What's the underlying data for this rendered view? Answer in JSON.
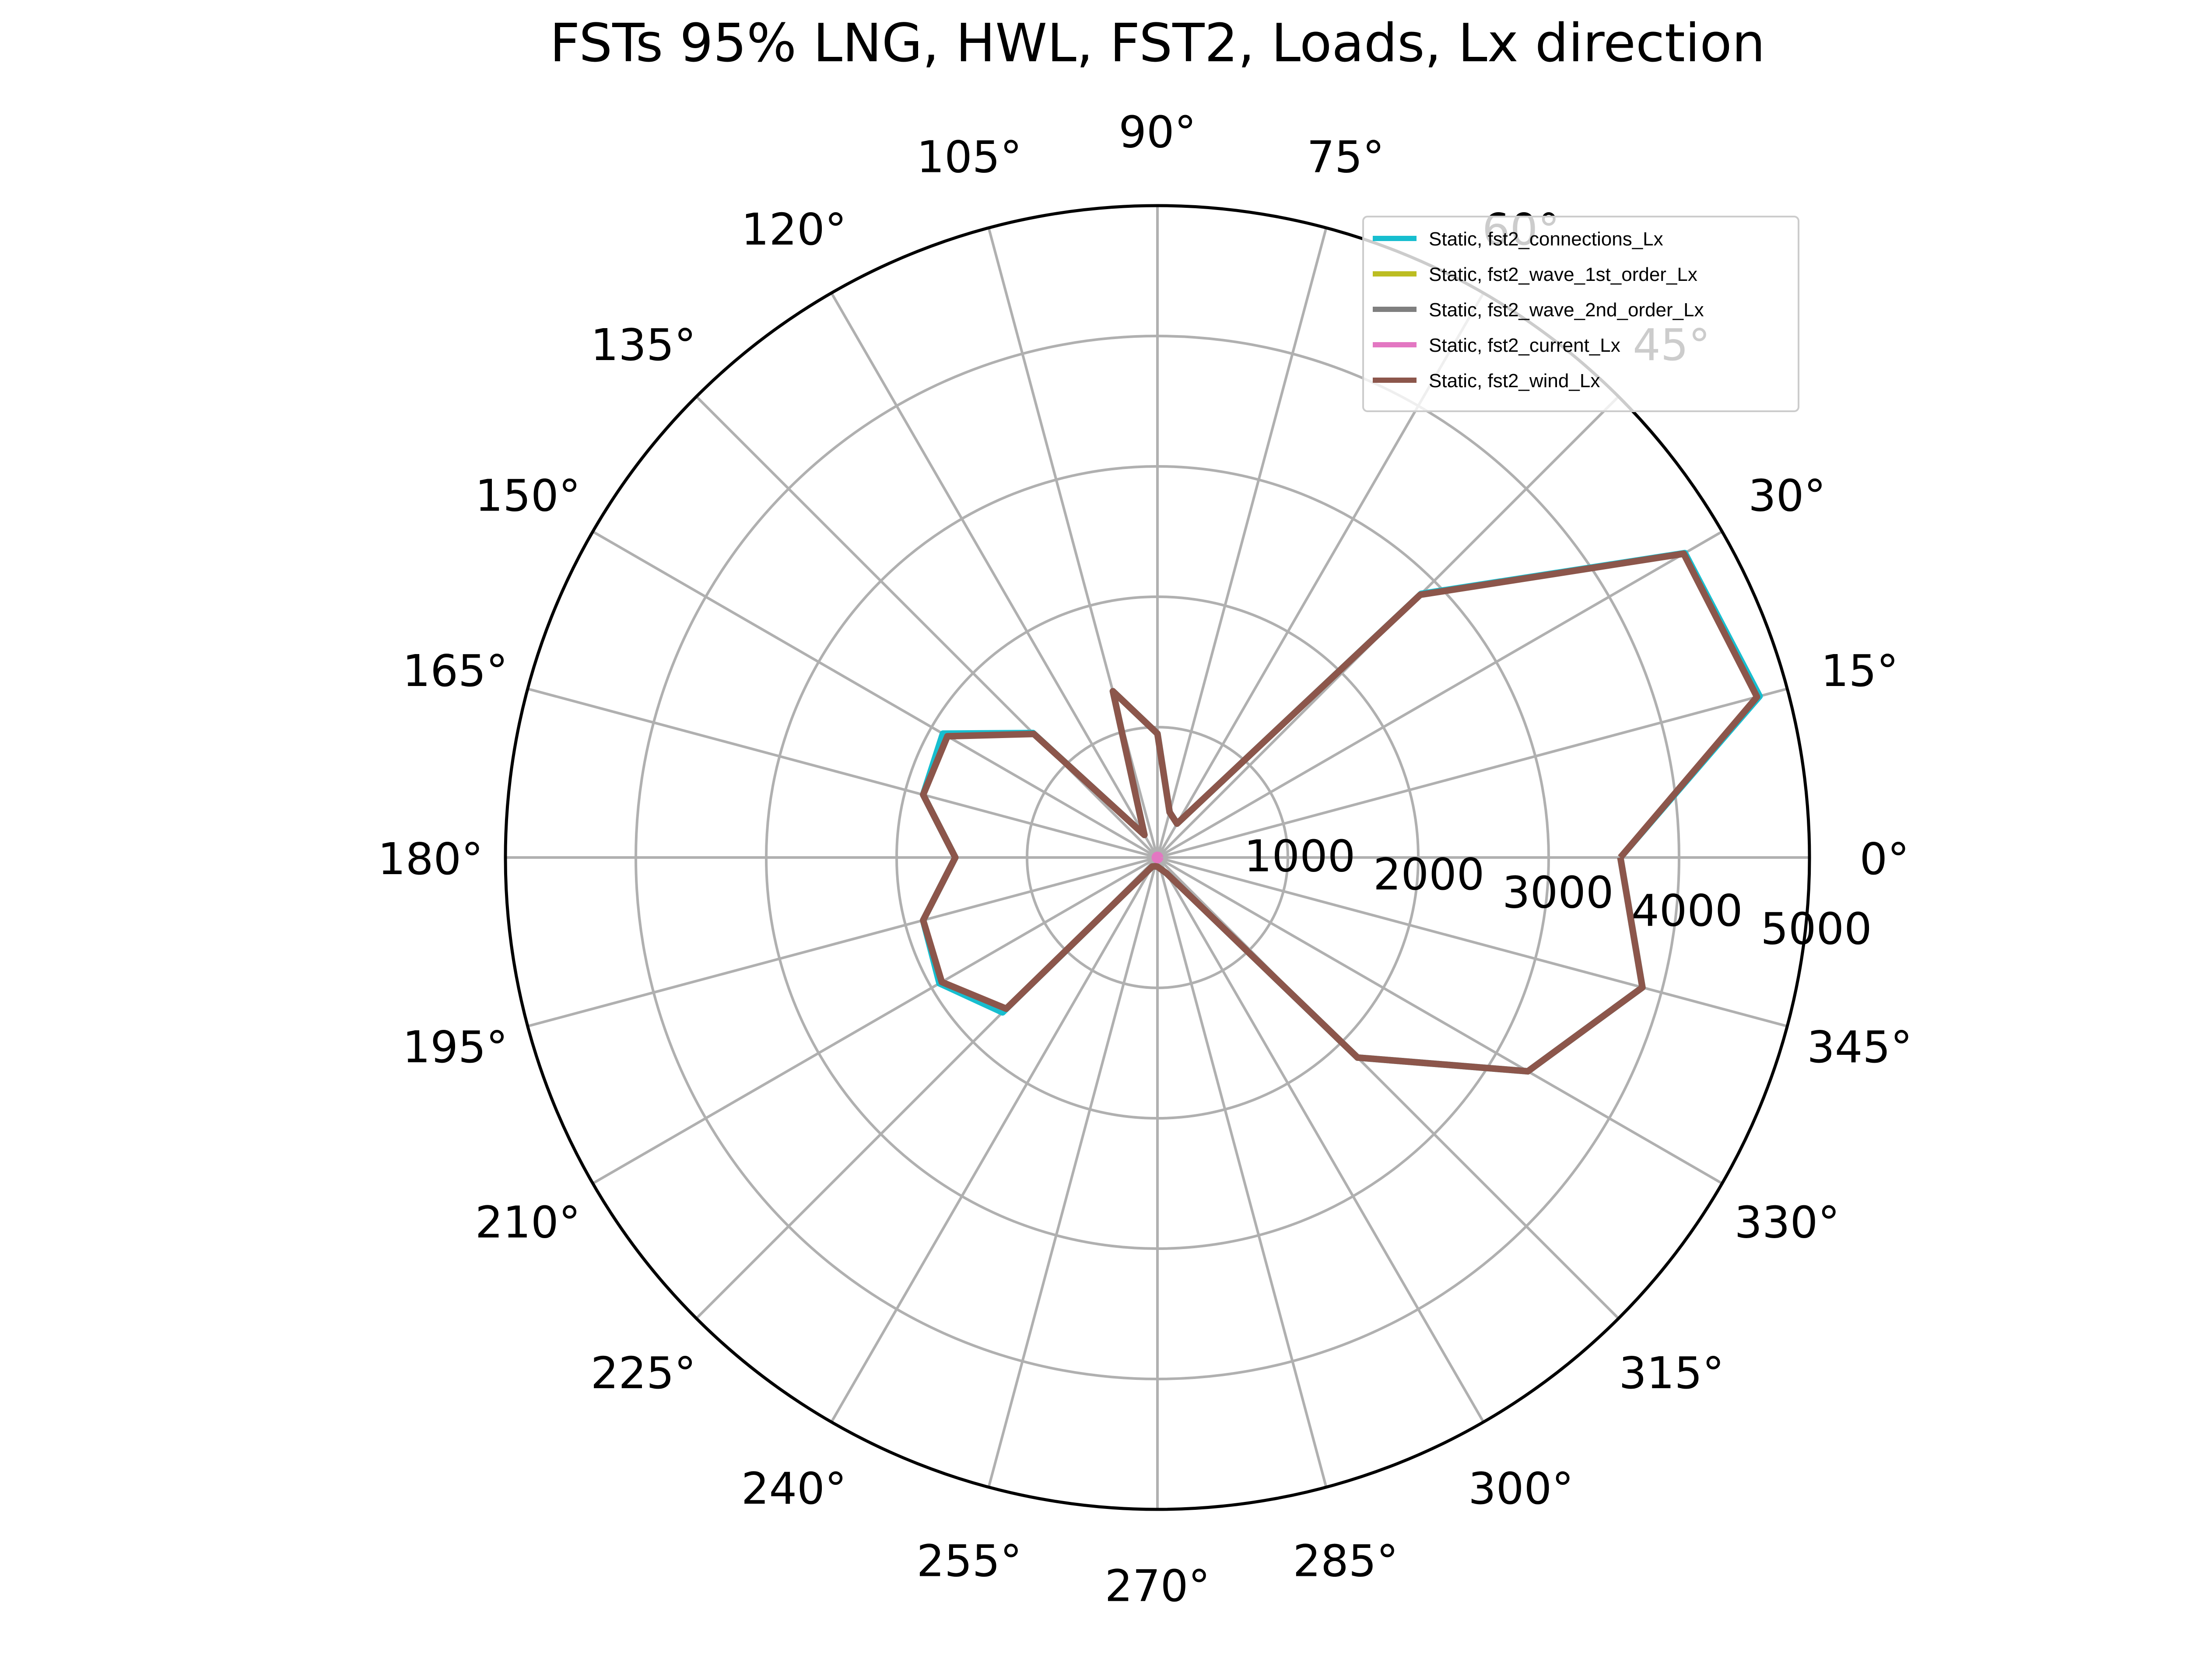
{
  "chart_data": {
    "type": "polar-line",
    "title": "FSTs 95% LNG, HWL, FST2, Loads, Lx direction",
    "r_max": 5000,
    "r_ticks": [
      1000,
      2000,
      3000,
      4000,
      5000
    ],
    "r_tick_labels": [
      "1000",
      "2000",
      "3000",
      "4000",
      "5000"
    ],
    "theta_ticks": [
      0,
      15,
      30,
      45,
      60,
      75,
      90,
      105,
      120,
      135,
      150,
      165,
      180,
      195,
      210,
      225,
      240,
      255,
      270,
      285,
      300,
      315,
      330,
      345
    ],
    "theta_tick_labels": [
      "0°",
      "15°",
      "30°",
      "45°",
      "60°",
      "75°",
      "90°",
      "105°",
      "120°",
      "135°",
      "150°",
      "165°",
      "180°",
      "195°",
      "210°",
      "225°",
      "240°",
      "255°",
      "270°",
      "285°",
      "300°",
      "315°",
      "330°",
      "345°"
    ],
    "grid": true,
    "legend": "top-right",
    "theta": [
      0,
      15,
      30,
      45,
      60,
      75,
      90,
      105,
      120,
      135,
      150,
      165,
      180,
      195,
      210,
      225,
      240,
      255,
      270,
      285,
      300,
      315,
      330,
      345
    ],
    "series": [
      {
        "name": "Static, fst2_connections_Lx",
        "color": "#17becf",
        "values": [
          3550,
          4780,
          4670,
          2860,
          300,
          360,
          950,
          1320,
          200,
          1350,
          1900,
          1860,
          1550,
          1860,
          1930,
          1680,
          80,
          70,
          70,
          90,
          140,
          2170,
          3280,
          3850
        ]
      },
      {
        "name": "Static, fst2_wave_1st_order_Lx",
        "color": "#bcbd22",
        "values": [
          0,
          0,
          0,
          0,
          0,
          0,
          0,
          0,
          0,
          0,
          0,
          0,
          0,
          0,
          0,
          0,
          0,
          0,
          0,
          0,
          0,
          0,
          0,
          0
        ]
      },
      {
        "name": "Static, fst2_wave_2nd_order_Lx",
        "color": "#7f7f7f",
        "values": [
          0,
          0,
          0,
          0,
          0,
          0,
          0,
          0,
          0,
          0,
          0,
          0,
          0,
          0,
          0,
          0,
          0,
          0,
          0,
          0,
          0,
          0,
          0,
          0
        ]
      },
      {
        "name": "Static, fst2_current_Lx",
        "color": "#e377c2",
        "values": [
          20,
          20,
          20,
          20,
          20,
          20,
          20,
          20,
          20,
          20,
          20,
          20,
          20,
          20,
          20,
          20,
          20,
          20,
          20,
          20,
          20,
          20,
          20,
          20
        ]
      },
      {
        "name": "Static, fst2_wind_Lx",
        "color": "#8c564b",
        "values": [
          3550,
          4760,
          4660,
          2850,
          300,
          360,
          950,
          1320,
          200,
          1340,
          1860,
          1860,
          1550,
          1860,
          1910,
          1640,
          80,
          70,
          70,
          90,
          140,
          2170,
          3280,
          3850
        ]
      }
    ]
  }
}
